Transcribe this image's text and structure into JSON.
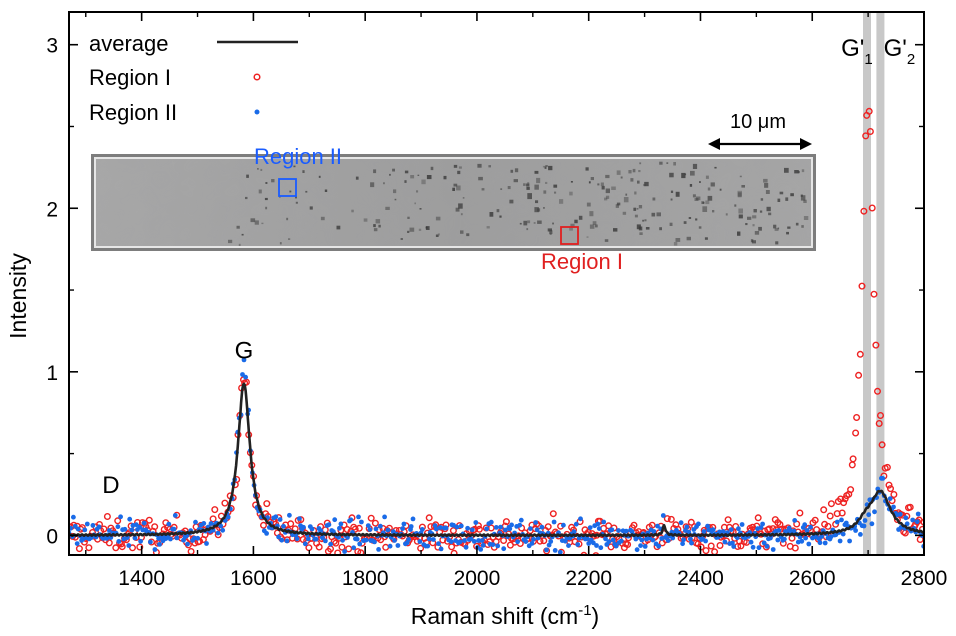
{
  "chart_data": {
    "type": "scatter",
    "title": "",
    "xlabel": "Raman shift (cm",
    "xlabel_sup": "-1",
    "xlabel_end": ")",
    "ylabel": "Intensity",
    "xlim": [
      1270,
      2800
    ],
    "ylim": [
      -0.12,
      3.2
    ],
    "x_ticks": [
      1400,
      1600,
      1800,
      2000,
      2200,
      2400,
      2600,
      2800
    ],
    "x_tick_labels": [
      "1400",
      "1600",
      "1800",
      "2000",
      "2200",
      "2400",
      "2600",
      "2800"
    ],
    "y_ticks": [
      0,
      1,
      2,
      3
    ],
    "y_tick_labels": [
      "0",
      "1",
      "2",
      "3"
    ],
    "legend_position": "top-left",
    "series": [
      {
        "name": "average",
        "style": "line",
        "color": "#222222"
      },
      {
        "name": "Region I",
        "style": "open-circle",
        "color": "#ee2222"
      },
      {
        "name": "Region II",
        "style": "filled-dot",
        "color": "#1a6be8"
      }
    ],
    "peaks": {
      "average": [
        {
          "center": 1583,
          "height": 0.93,
          "width": 13
        },
        {
          "center": 2335,
          "height": 0.06,
          "width": 3
        },
        {
          "center": 2722,
          "height": 0.26,
          "width": 22
        },
        {
          "center": 2695,
          "height": 0.05,
          "width": 15
        }
      ],
      "region1": [
        {
          "center": 1583,
          "height": 0.97,
          "width": 12
        },
        {
          "center": 2700,
          "height": 2.72,
          "width": 12
        },
        {
          "center": 2335,
          "height": 0.08,
          "width": 3
        }
      ],
      "region2": [
        {
          "center": 1583,
          "height": 0.97,
          "width": 13
        },
        {
          "center": 2725,
          "height": 0.28,
          "width": 22
        },
        {
          "center": 2335,
          "height": 0.07,
          "width": 3
        }
      ]
    },
    "noise": {
      "region1": 0.05,
      "region2": 0.045
    },
    "point_spacing": {
      "region1": 3,
      "region2": 2.8
    },
    "vertical_bands": [
      2698,
      2722
    ],
    "annotations": [
      {
        "label": "D",
        "x": 1345,
        "y": 0.26
      },
      {
        "label": "G",
        "x": 1583,
        "y": 1.08
      },
      {
        "label": "G'",
        "sub": "1",
        "x": 2680,
        "y": 2.93
      },
      {
        "label": "G'",
        "sub": "2",
        "x": 2756,
        "y": 2.93
      }
    ],
    "inset": {
      "scale_bar_label": "10 μm",
      "region_labels": [
        "Region II",
        "Region I"
      ],
      "region_colors": [
        "#1a5cff",
        "#e02020"
      ]
    }
  }
}
